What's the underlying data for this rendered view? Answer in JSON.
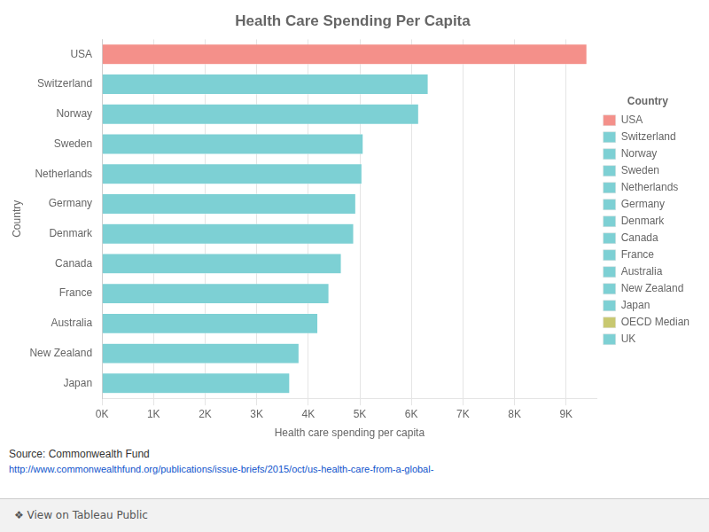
{
  "chart_data": {
    "type": "bar",
    "orientation": "horizontal",
    "title": "Health Care Spending Per Capita",
    "xlabel": "Health care spending per capita",
    "ylabel": "Country",
    "categories": [
      "USA",
      "Switzerland",
      "Norway",
      "Sweden",
      "Netherlands",
      "Germany",
      "Denmark",
      "Canada",
      "France",
      "Australia",
      "New Zealand",
      "Japan"
    ],
    "values": [
      9403,
      6325,
      6140,
      5065,
      5040,
      4920,
      4880,
      4640,
      4400,
      4185,
      3820,
      3640
    ],
    "colors": [
      "#F4908A",
      "#7DD0D4",
      "#7DD0D4",
      "#7DD0D4",
      "#7DD0D4",
      "#7DD0D4",
      "#7DD0D4",
      "#7DD0D4",
      "#7DD0D4",
      "#7DD0D4",
      "#7DD0D4",
      "#7DD0D4"
    ],
    "xlim": [
      0,
      9600
    ],
    "xticks": [
      {
        "value": 0,
        "label": "0K"
      },
      {
        "value": 1000,
        "label": "1K"
      },
      {
        "value": 2000,
        "label": "2K"
      },
      {
        "value": 3000,
        "label": "3K"
      },
      {
        "value": 4000,
        "label": "4K"
      },
      {
        "value": 5000,
        "label": "5K"
      },
      {
        "value": 6000,
        "label": "6K"
      },
      {
        "value": 7000,
        "label": "7K"
      },
      {
        "value": 8000,
        "label": "8K"
      },
      {
        "value": 9000,
        "label": "9K"
      }
    ],
    "grid": "x",
    "legend": "right",
    "legend_title": "Country",
    "legend_entries": [
      {
        "name": "USA",
        "color": "#F4908A"
      },
      {
        "name": "Switzerland",
        "color": "#7DD0D4"
      },
      {
        "name": "Norway",
        "color": "#7DD0D4"
      },
      {
        "name": "Sweden",
        "color": "#7DD0D4"
      },
      {
        "name": "Netherlands",
        "color": "#7DD0D4"
      },
      {
        "name": "Germany",
        "color": "#7DD0D4"
      },
      {
        "name": "Denmark",
        "color": "#7DD0D4"
      },
      {
        "name": "Canada",
        "color": "#7DD0D4"
      },
      {
        "name": "France",
        "color": "#7DD0D4"
      },
      {
        "name": "Australia",
        "color": "#7DD0D4"
      },
      {
        "name": "New Zealand",
        "color": "#7DD0D4"
      },
      {
        "name": "Japan",
        "color": "#7DD0D4"
      },
      {
        "name": "OECD Median",
        "color": "#C8C870"
      },
      {
        "name": "UK",
        "color": "#7DD0D4"
      }
    ],
    "annotations": [
      "Source: Commonwealth Fund",
      "http://www.commonwealthfund.org/publications/issue-briefs/2015/oct/us-health-care-from-a-global-",
      "❖ View on Tableau Public"
    ]
  }
}
